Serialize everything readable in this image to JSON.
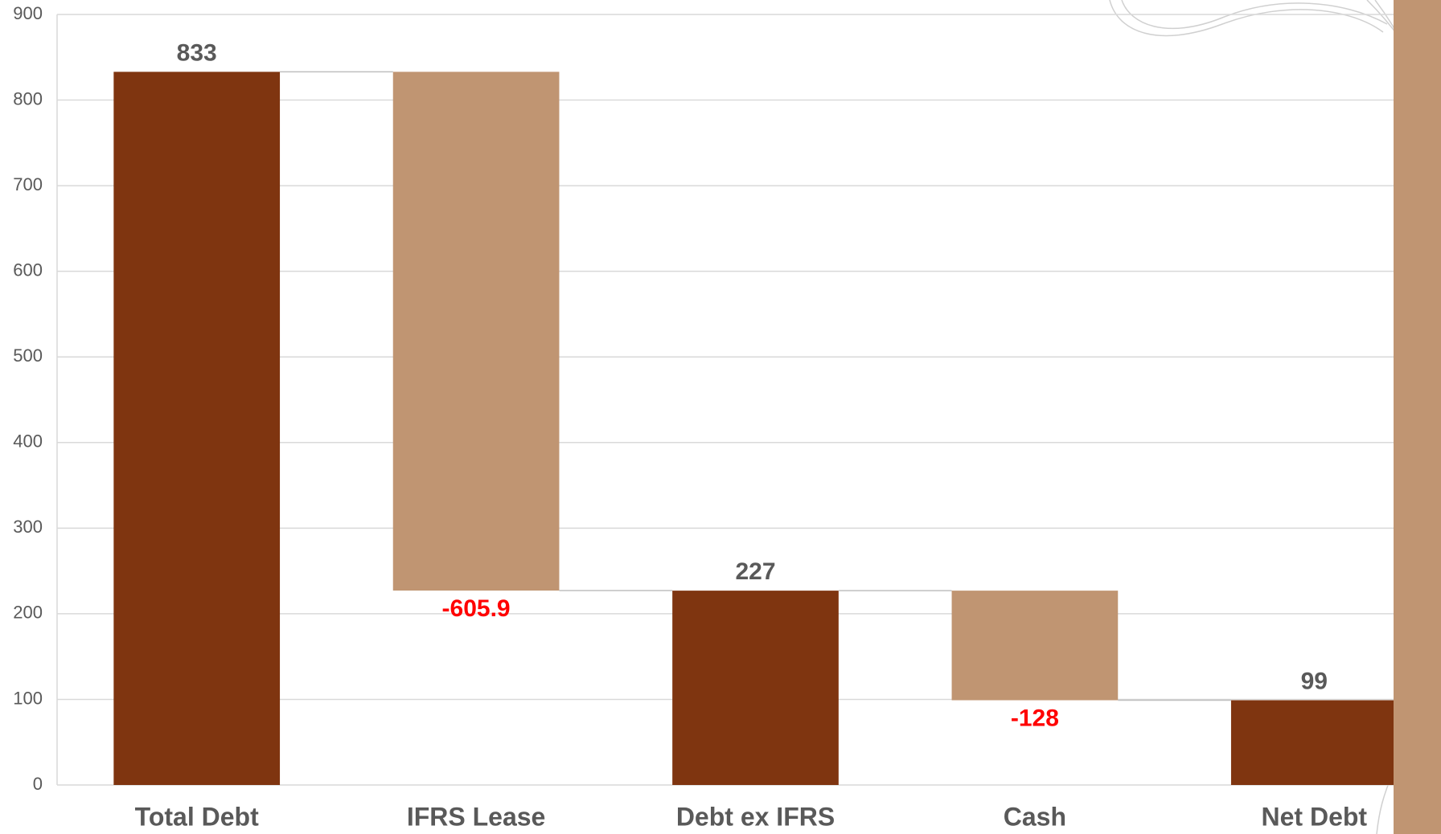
{
  "chart_data": {
    "type": "waterfall",
    "categories": [
      "Total Debt",
      "IFRS Lease",
      "Debt ex IFRS",
      "Cash",
      "Net Debt"
    ],
    "values": [
      833,
      -605.9,
      227,
      -128,
      99
    ],
    "measure": [
      "total",
      "relative",
      "total",
      "relative",
      "total"
    ],
    "total_color": "#7f3510",
    "relative_color": "#c09572",
    "negative_label_color": "#ff0000",
    "ylim": [
      0,
      900
    ],
    "yticks": [
      0,
      100,
      200,
      300,
      400,
      500,
      600,
      700,
      800,
      900
    ],
    "grid": true
  }
}
